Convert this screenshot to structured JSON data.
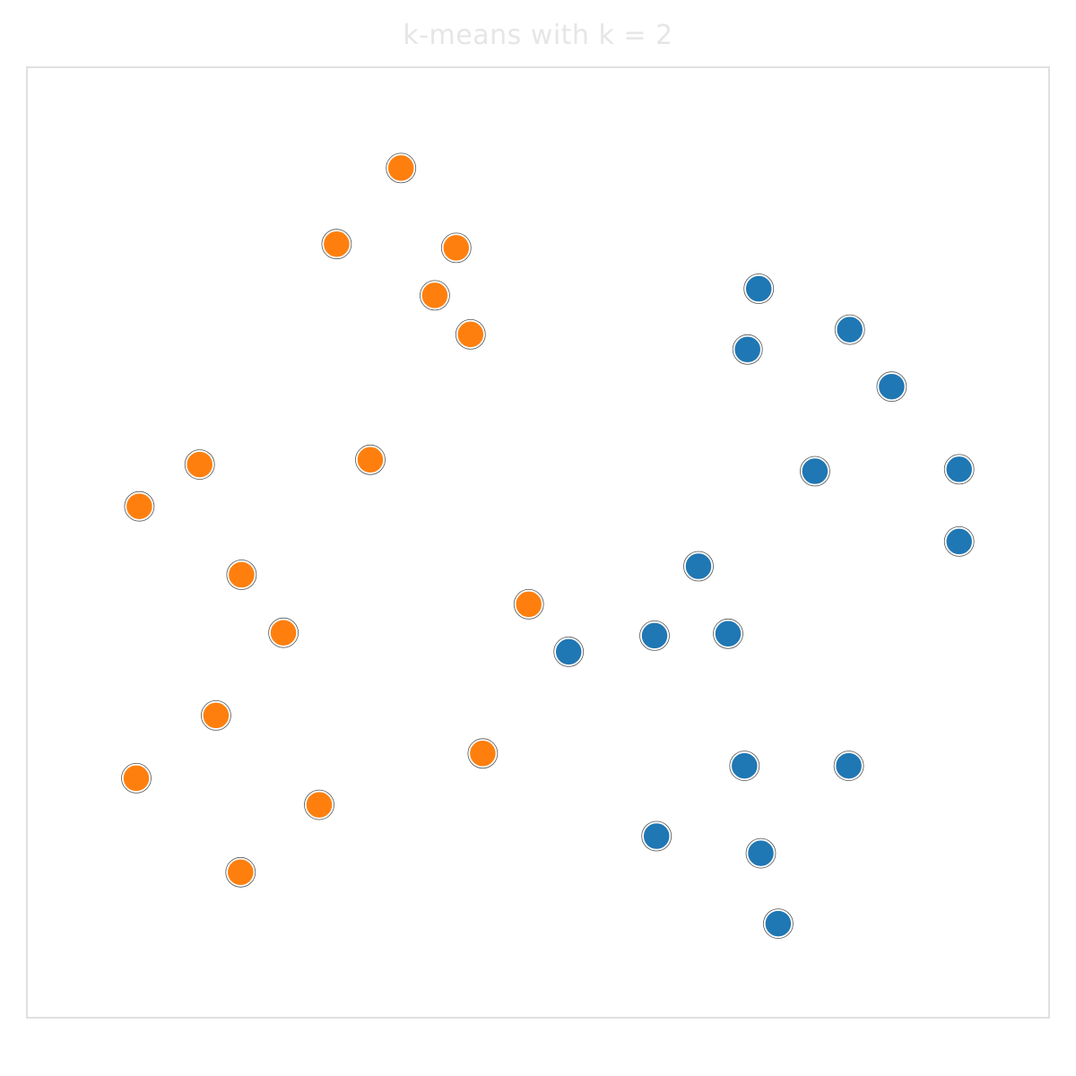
{
  "chart_data": {
    "type": "scatter",
    "title": "k-means with k = 2",
    "xlabel": "",
    "ylabel": "",
    "xlim": [
      0,
      100
    ],
    "ylim": [
      0,
      100
    ],
    "grid": false,
    "colors": {
      "cluster_0": "#1f77b4",
      "cluster_1": "#ff7f0e",
      "frame": "#e0e0e0"
    },
    "series": [
      {
        "cluster": 0,
        "points": [
          {
            "x": 71.6,
            "y": 76.7
          },
          {
            "x": 70.5,
            "y": 70.3
          },
          {
            "x": 80.5,
            "y": 72.4
          },
          {
            "x": 84.6,
            "y": 66.4
          },
          {
            "x": 77.1,
            "y": 57.5
          },
          {
            "x": 91.2,
            "y": 57.7
          },
          {
            "x": 91.2,
            "y": 50.1
          },
          {
            "x": 65.7,
            "y": 47.5
          },
          {
            "x": 61.4,
            "y": 40.2
          },
          {
            "x": 68.6,
            "y": 40.4
          },
          {
            "x": 53.0,
            "y": 38.5
          },
          {
            "x": 70.2,
            "y": 26.5
          },
          {
            "x": 80.4,
            "y": 26.5
          },
          {
            "x": 61.6,
            "y": 19.1
          },
          {
            "x": 71.8,
            "y": 17.3
          },
          {
            "x": 73.5,
            "y": 9.9
          }
        ]
      },
      {
        "cluster": 1,
        "points": [
          {
            "x": 36.6,
            "y": 89.4
          },
          {
            "x": 30.3,
            "y": 81.4
          },
          {
            "x": 42.0,
            "y": 81.0
          },
          {
            "x": 39.9,
            "y": 76.0
          },
          {
            "x": 43.4,
            "y": 71.9
          },
          {
            "x": 16.9,
            "y": 58.2
          },
          {
            "x": 33.6,
            "y": 58.7
          },
          {
            "x": 11.0,
            "y": 53.8
          },
          {
            "x": 21.0,
            "y": 46.6
          },
          {
            "x": 25.1,
            "y": 40.5
          },
          {
            "x": 49.1,
            "y": 43.5
          },
          {
            "x": 18.5,
            "y": 31.8
          },
          {
            "x": 44.6,
            "y": 27.8
          },
          {
            "x": 10.7,
            "y": 25.2
          },
          {
            "x": 28.6,
            "y": 22.4
          },
          {
            "x": 20.9,
            "y": 15.3
          }
        ]
      }
    ]
  }
}
